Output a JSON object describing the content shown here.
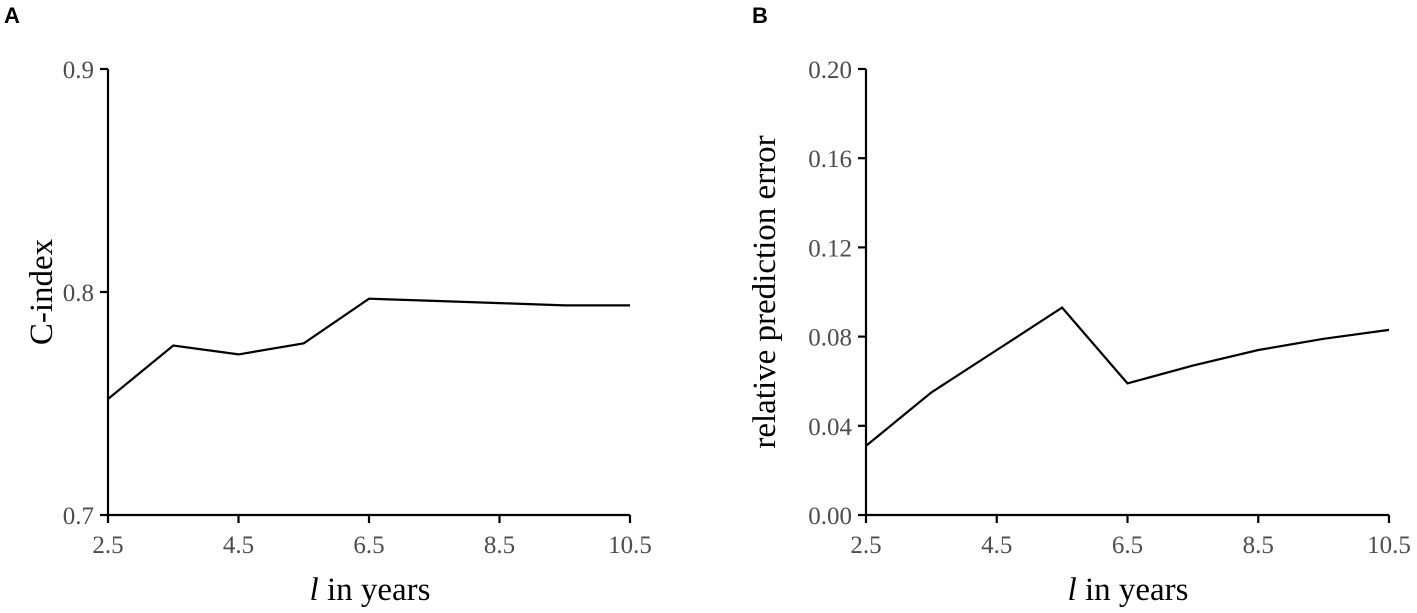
{
  "chart_data": [
    {
      "type": "line",
      "panel_label": "A",
      "xlabel_italic": "l",
      "xlabel_rest": " in years",
      "ylabel": "C-index",
      "xlim": [
        2.5,
        10.5
      ],
      "ylim": [
        0.7,
        0.9
      ],
      "x_ticks": [
        2.5,
        4.5,
        6.5,
        8.5,
        10.5
      ],
      "x_tick_labels": [
        "2.5",
        "4.5",
        "6.5",
        "8.5",
        "10.5"
      ],
      "y_ticks": [
        0.7,
        0.8,
        0.9
      ],
      "y_tick_labels": [
        "0.7",
        "0.8",
        "0.9"
      ],
      "grid": false,
      "x": [
        2.5,
        3.5,
        4.5,
        5.5,
        6.5,
        7.5,
        8.5,
        9.5,
        10.5
      ],
      "y": [
        0.752,
        0.776,
        0.772,
        0.777,
        0.797,
        0.796,
        0.795,
        0.794,
        0.794
      ]
    },
    {
      "type": "line",
      "panel_label": "B",
      "xlabel_italic": "l",
      "xlabel_rest": " in years",
      "ylabel": "relative prediction error",
      "xlim": [
        2.5,
        10.5
      ],
      "ylim": [
        0.0,
        0.2
      ],
      "x_ticks": [
        2.5,
        4.5,
        6.5,
        8.5,
        10.5
      ],
      "x_tick_labels": [
        "2.5",
        "4.5",
        "6.5",
        "8.5",
        "10.5"
      ],
      "y_ticks": [
        0.0,
        0.04,
        0.08,
        0.12,
        0.16,
        0.2
      ],
      "y_tick_labels": [
        "0.00",
        "0.04",
        "0.08",
        "0.12",
        "0.16",
        "0.20"
      ],
      "grid": false,
      "x": [
        2.5,
        3.5,
        4.5,
        5.5,
        6.5,
        7.5,
        8.5,
        9.5,
        10.5
      ],
      "y": [
        0.031,
        0.055,
        0.074,
        0.093,
        0.059,
        0.067,
        0.074,
        0.079,
        0.083
      ]
    }
  ]
}
